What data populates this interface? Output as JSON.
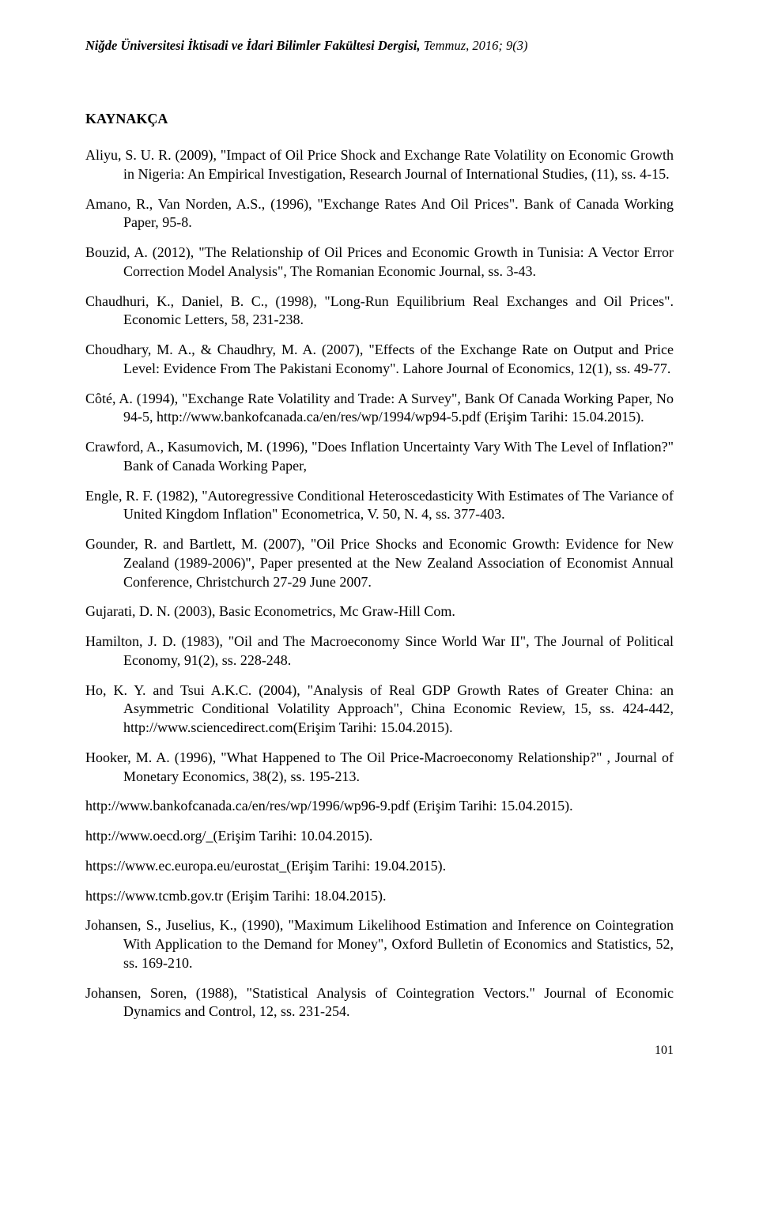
{
  "header": {
    "journal_bold": "Niğde Üniversitesi İktisadi ve İdari Bilimler Fakültesi Dergisi,",
    "journal_rest": " Temmuz, 2016; 9(3)"
  },
  "section_title": "KAYNAKÇA",
  "references": [
    "Aliyu, S. U. R. (2009), \"Impact of Oil Price Shock and Exchange Rate Volatility on Economic Growth in Nigeria: An Empirical Investigation, Research Journal of International Studies, (11), ss. 4-15.",
    "Amano, R., Van Norden, A.S., (1996), \"Exchange Rates And Oil Prices\". Bank of Canada Working Paper, 95-8.",
    "Bouzid, A. (2012), \"The Relationship of Oil Prices and Economic Growth in Tunisia: A Vector Error Correction Model Analysis\", The Romanian Economic Journal, ss. 3-43.",
    "Chaudhuri, K., Daniel, B. C., (1998), \"Long-Run Equilibrium Real Exchanges and Oil Prices\". Economic Letters, 58, 231-238.",
    "Choudhary, M. A., & Chaudhry, M. A. (2007), \"Effects of the Exchange Rate on Output and Price Level: Evidence From The Pakistani Economy\". Lahore Journal of Economics, 12(1), ss. 49-77.",
    "Côté, A. (1994), \"Exchange Rate Volatility and Trade: A Survey\", Bank Of Canada Working Paper, No 94-5, http://www.bankofcanada.ca/en/res/wp/1994/wp94-5.pdf (Erişim Tarihi: 15.04.2015).",
    "Crawford, A., Kasumovich, M. (1996), \"Does Inflation Uncertainty Vary With The Level of Inflation?\" Bank of Canada Working Paper,",
    "Engle, R. F. (1982), \"Autoregressive Conditional Heteroscedasticity With Estimates of The Variance of United Kingdom Inflation\" Econometrica, V. 50, N. 4, ss. 377-403.",
    "Gounder, R. and Bartlett, M. (2007), \"Oil Price Shocks and Economic Growth: Evidence for New Zealand (1989-2006)\", Paper presented at the New Zealand Association of Economist Annual Conference, Christchurch 27-29 June 2007.",
    "Gujarati, D. N. (2003), Basic Econometrics, Mc Graw-Hill Com.",
    "Hamilton, J. D. (1983), \"Oil and The Macroeconomy Since World War II\", The Journal of Political Economy, 91(2), ss. 228-248.",
    "Ho, K. Y. and Tsui A.K.C. (2004), \"Analysis of Real GDP Growth Rates of Greater China: an Asymmetric Conditional Volatility Approach\", China Economic Review, 15, ss. 424-442, http://www.sciencedirect.com(Erişim Tarihi: 15.04.2015).",
    "Hooker, M. A. (1996), \"What Happened to The Oil Price-Macroeconomy Relationship?\" , Journal of Monetary Economics, 38(2), ss. 195-213.",
    "http://www.bankofcanada.ca/en/res/wp/1996/wp96-9.pdf (Erişim Tarihi: 15.04.2015).",
    "http://www.oecd.org/_(Erişim Tarihi: 10.04.2015).",
    "https://www.ec.europa.eu/eurostat_(Erişim Tarihi: 19.04.2015).",
    "https://www.tcmb.gov.tr (Erişim Tarihi: 18.04.2015).",
    "Johansen, S., Juselius, K., (1990), \"Maximum Likelihood Estimation and Inference on Cointegration With Application to the Demand for Money\", Oxford Bulletin of Economics and Statistics, 52, ss. 169-210.",
    "Johansen, Soren, (1988), \"Statistical Analysis of Cointegration Vectors.\" Journal of Economic Dynamics and Control, 12, ss. 231-254."
  ],
  "page_number": "101"
}
